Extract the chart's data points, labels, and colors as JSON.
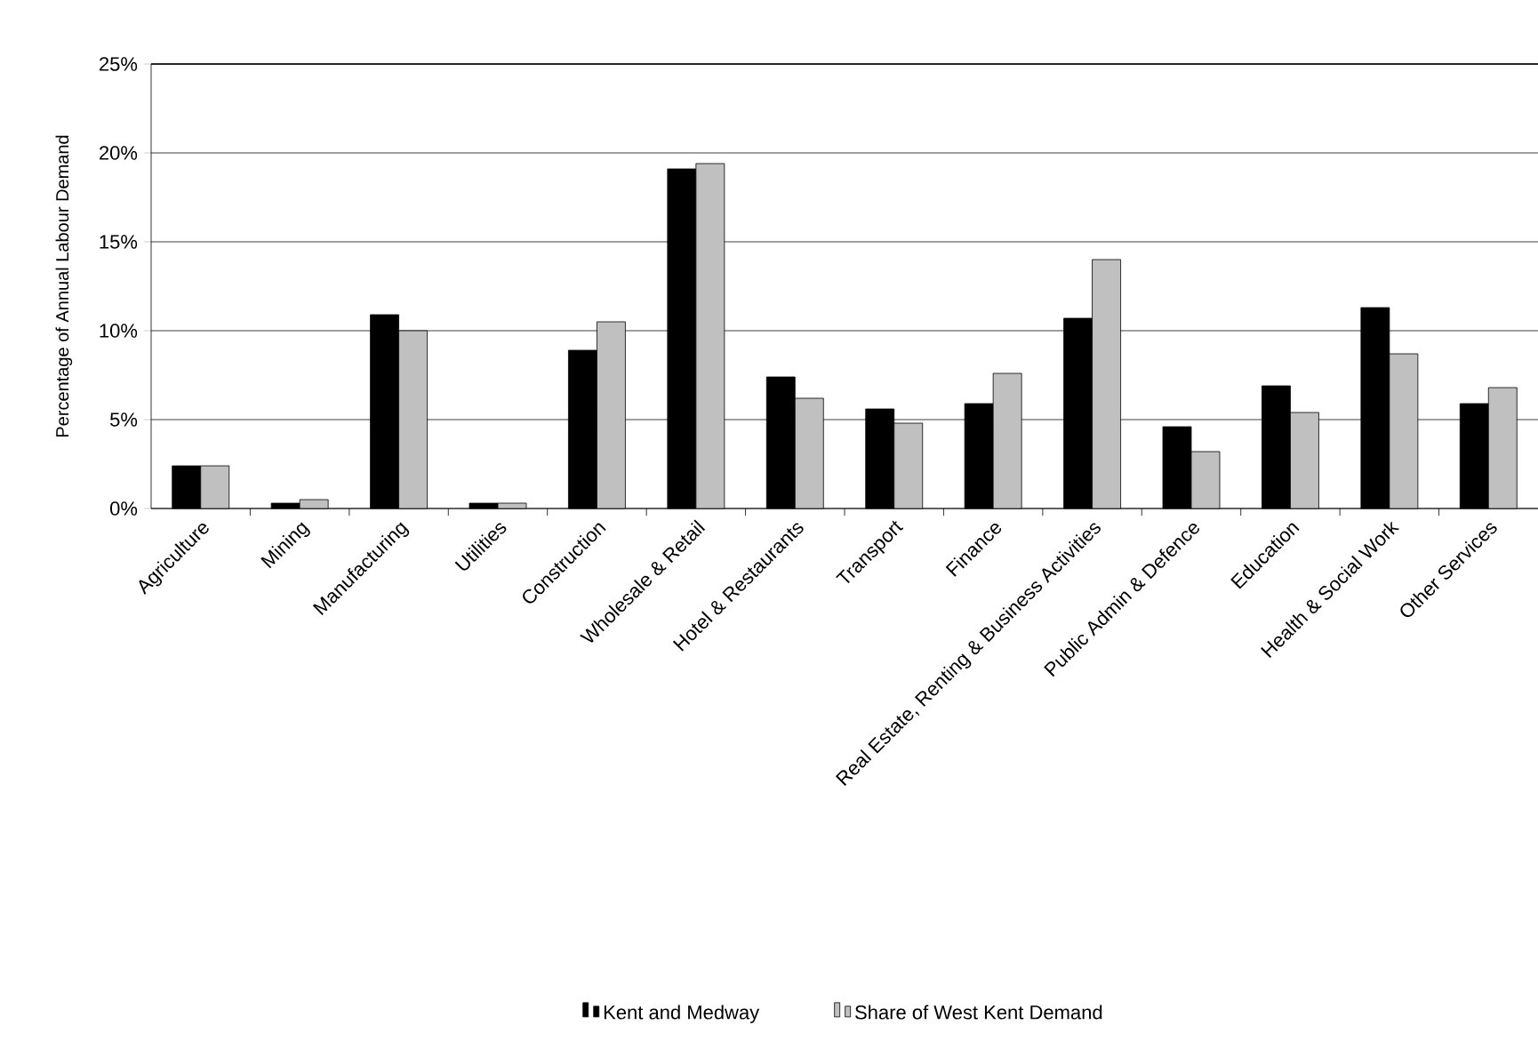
{
  "chart_data": {
    "type": "bar",
    "ylabel": "Percentage of Annual Labour Demand",
    "categories": [
      "Agriculture",
      "Mining",
      "Manufacturing",
      "Utilities",
      "Construction",
      "Wholesale & Retail",
      "Hotel & Restaurants",
      "Transport",
      "Finance",
      "Real Estate, Renting & Business Activities",
      "Public Admin & Defence",
      "Education",
      "Health & Social Work",
      "Other Services"
    ],
    "series": [
      {
        "name": "Kent and Medway",
        "color": "#000000",
        "values": [
          2.4,
          0.3,
          10.9,
          0.3,
          8.9,
          19.1,
          7.4,
          5.6,
          5.9,
          10.7,
          4.6,
          6.9,
          11.3,
          5.9
        ]
      },
      {
        "name": "Share of West Kent Demand",
        "color": "#c0c0c0",
        "values": [
          2.4,
          0.5,
          10.0,
          0.3,
          10.5,
          19.4,
          6.2,
          4.8,
          7.6,
          14.0,
          3.2,
          5.4,
          8.7,
          6.8
        ]
      }
    ],
    "ylim": [
      0,
      25
    ],
    "yticks": [
      {
        "value": 0,
        "label": "0%"
      },
      {
        "value": 5,
        "label": "5%"
      },
      {
        "value": 10,
        "label": "10%"
      },
      {
        "value": 15,
        "label": "15%"
      },
      {
        "value": 20,
        "label": "20%"
      },
      {
        "value": 25,
        "label": "25%"
      }
    ],
    "grid": "y",
    "legend": "bottom"
  }
}
